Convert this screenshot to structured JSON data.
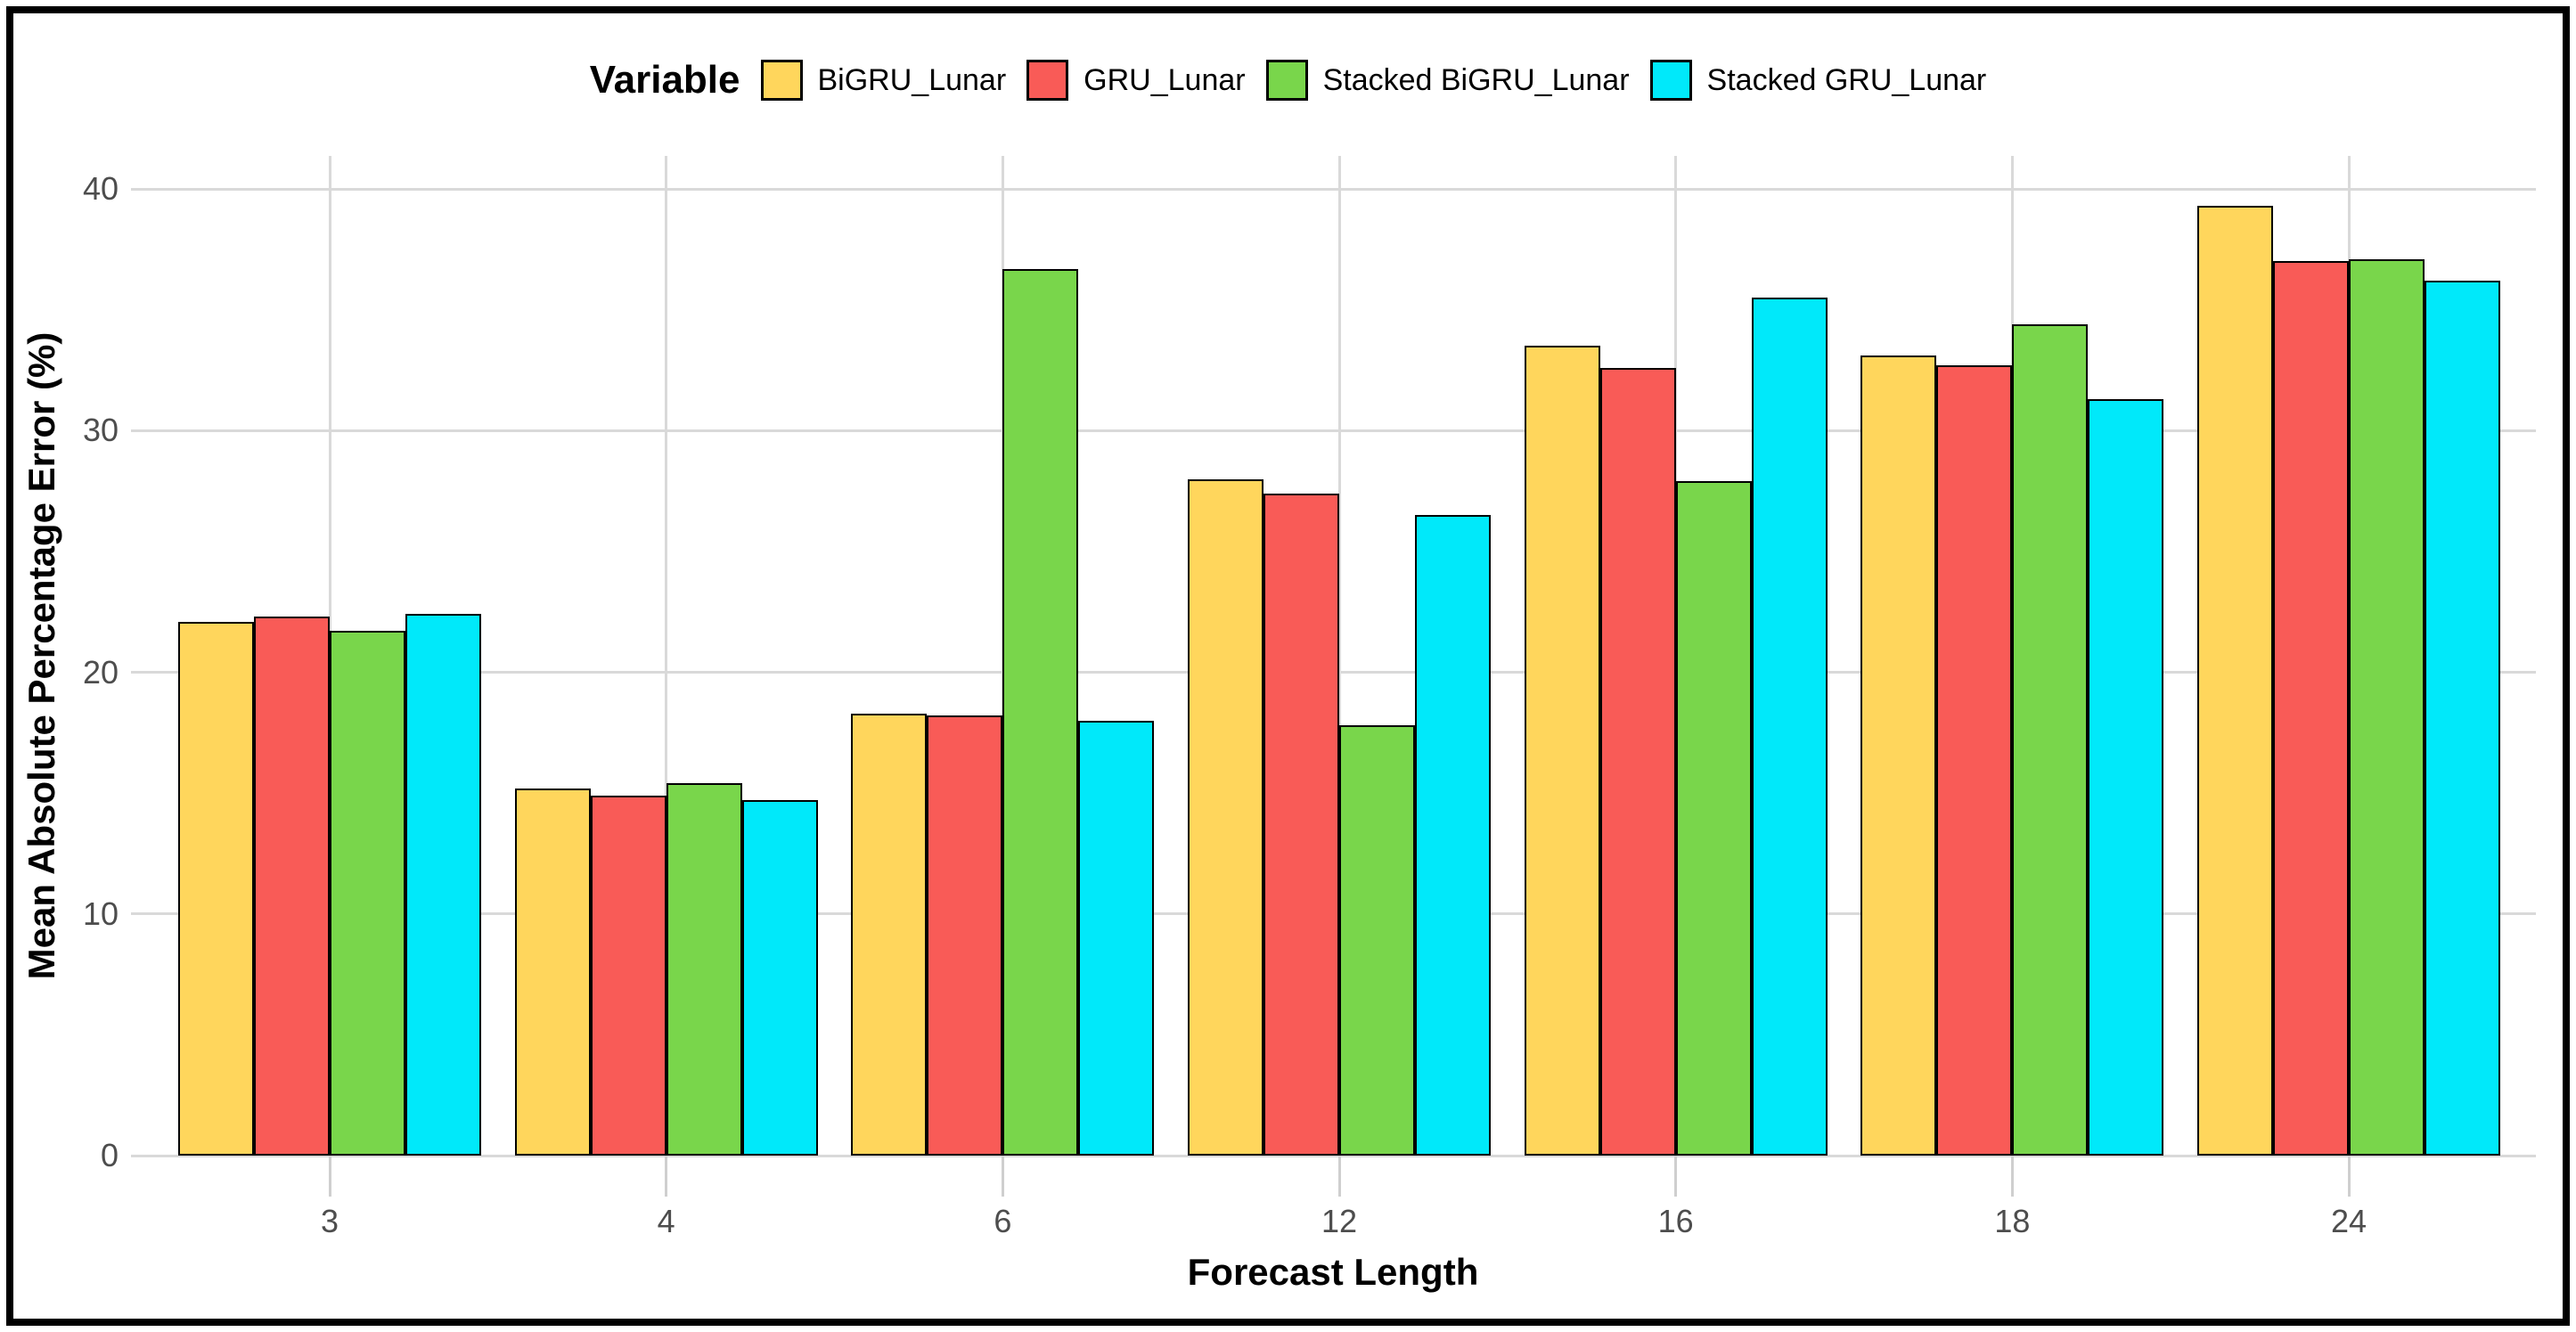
{
  "figure": {
    "background": "#FFFFFF",
    "border_color": "#000000"
  },
  "chart_data": {
    "type": "bar",
    "title": "",
    "legend_title": "Variable",
    "legend_position": "top-center",
    "xlabel": "Forecast Length",
    "ylabel": "Mean Absolute Percentage Error (%)",
    "categories": [
      "3",
      "4",
      "6",
      "12",
      "16",
      "18",
      "24"
    ],
    "series": [
      {
        "name": "BiGRU_Lunar",
        "color": "#FFD65C",
        "values": [
          22.1,
          15.2,
          18.3,
          28.0,
          33.5,
          33.1,
          39.3
        ]
      },
      {
        "name": "GRU_Lunar",
        "color": "#F95B57",
        "values": [
          22.3,
          14.9,
          18.2,
          27.4,
          32.6,
          32.7,
          37.0
        ]
      },
      {
        "name": "Stacked BiGRU_Lunar",
        "color": "#79D64B",
        "values": [
          21.7,
          15.4,
          36.7,
          17.8,
          27.9,
          34.4,
          37.1
        ]
      },
      {
        "name": "Stacked GRU_Lunar",
        "color": "#00E9FA",
        "values": [
          22.4,
          14.7,
          18.0,
          26.5,
          35.5,
          31.3,
          36.2
        ]
      }
    ],
    "y_ticks": [
      0,
      10,
      20,
      30,
      40
    ],
    "ylim": [
      0,
      41.4
    ],
    "grid": "major-x-and-y",
    "gridline_color": "#D9D9D9",
    "axis_tick_color": "#CFCFCF",
    "tick_label_color": "#4D4D4D",
    "bar_border_color": "#000000"
  }
}
